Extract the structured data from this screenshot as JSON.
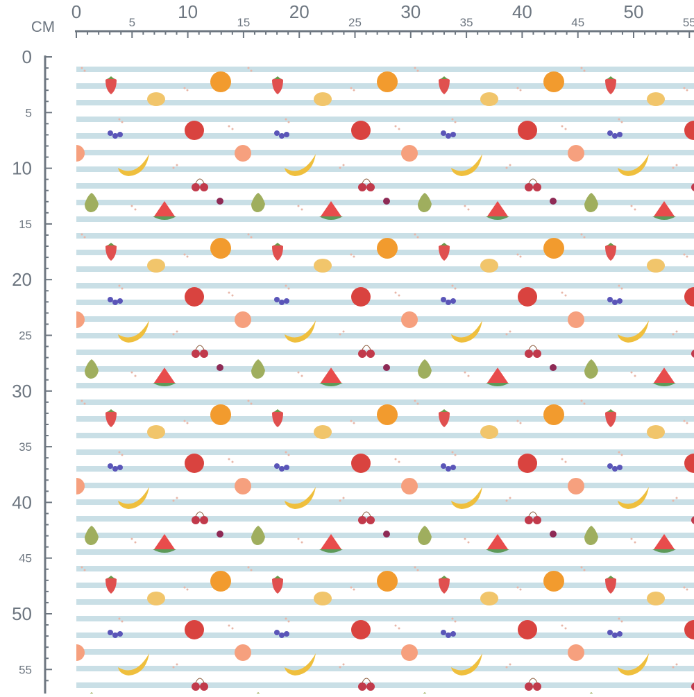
{
  "ruler": {
    "unit": "CM",
    "top": [
      0,
      5,
      10,
      15,
      20,
      25,
      30,
      35,
      40,
      45,
      50,
      55
    ],
    "left": [
      0,
      5,
      10,
      15,
      20,
      25,
      30,
      35,
      40,
      45,
      50,
      55
    ]
  }
}
